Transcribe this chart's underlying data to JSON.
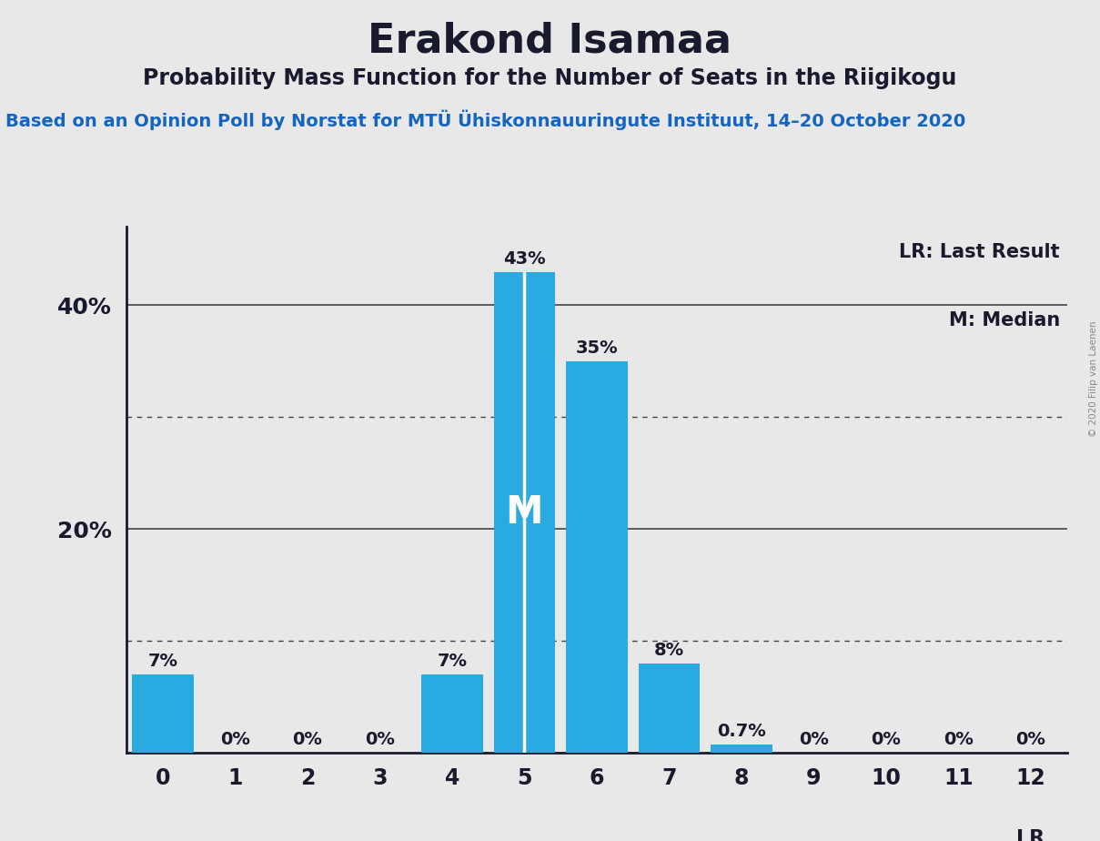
{
  "title": "Erakond Isamaa",
  "subtitle": "Probability Mass Function for the Number of Seats in the Riigikogu",
  "subsubtitle": "Based on an Opinion Poll by Norstat for MTÜ Ühiskonnauuringute Instituut, 14–20 October 2020",
  "copyright": "© 2020 Filip van Laenen",
  "seats": [
    0,
    1,
    2,
    3,
    4,
    5,
    6,
    7,
    8,
    9,
    10,
    11,
    12
  ],
  "probabilities": [
    0.07,
    0.0,
    0.0,
    0.0,
    0.07,
    0.43,
    0.35,
    0.08,
    0.007,
    0.0,
    0.0,
    0.0,
    0.0
  ],
  "bar_color": "#29ABE2",
  "background_color": "#E8E8E8",
  "median_seat": 5,
  "lr_seat": 12,
  "ylim_max": 0.47,
  "dotted_lines": [
    0.1,
    0.3
  ],
  "solid_lines": [
    0.2,
    0.4
  ],
  "legend_text_lr": "LR: Last Result",
  "legend_text_m": "M: Median",
  "title_fontsize": 32,
  "subtitle_fontsize": 17,
  "subsubtitle_fontsize": 14,
  "bar_label_fontsize": 14,
  "tick_fontsize": 17,
  "ytick_label_fontsize": 18,
  "legend_fontsize": 15,
  "lr_below_fontsize": 16,
  "title_color": "#1a1a2e",
  "subtitle_color": "#1a1a2e",
  "subsubtitle_color": "#1565C0",
  "tick_color": "#1a1a2e",
  "legend_color": "#1a1a2e",
  "copyright_color": "#888888"
}
